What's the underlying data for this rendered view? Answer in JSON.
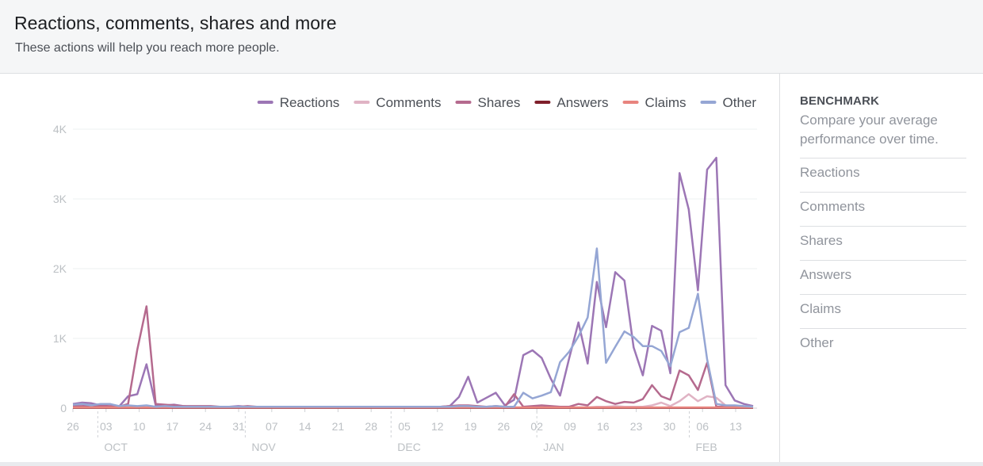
{
  "header": {
    "title": "Reactions, comments, shares and more",
    "subtitle": "These actions will help you reach more people."
  },
  "benchmark": {
    "title": "BENCHMARK",
    "description": "Compare your average performance over time.",
    "items": [
      "Reactions",
      "Comments",
      "Shares",
      "Answers",
      "Claims",
      "Other"
    ]
  },
  "chart_data": {
    "type": "line",
    "y_ticks": [
      "0",
      "1K",
      "2K",
      "3K",
      "4K"
    ],
    "ylim": [
      0,
      4000
    ],
    "x_ticks": [
      "26",
      "03",
      "10",
      "17",
      "24",
      "31",
      "07",
      "14",
      "21",
      "28",
      "05",
      "12",
      "19",
      "26",
      "02",
      "09",
      "16",
      "23",
      "30",
      "06",
      "13"
    ],
    "months": [
      "OCT",
      "NOV",
      "DEC",
      "JAN",
      "FEB"
    ],
    "grid": true,
    "legend_position": "top-right",
    "series": [
      {
        "name": "Reactions",
        "color": "#9c76b5",
        "values": [
          60,
          80,
          70,
          40,
          60,
          20,
          170,
          200,
          630,
          40,
          40,
          50,
          30,
          20,
          20,
          20,
          20,
          20,
          30,
          20,
          20,
          20,
          10,
          20,
          10,
          10,
          10,
          20,
          10,
          10,
          20,
          20,
          20,
          20,
          20,
          20,
          20,
          10,
          10,
          10,
          20,
          30,
          160,
          450,
          80,
          150,
          220,
          40,
          120,
          760,
          830,
          720,
          420,
          180,
          720,
          1230,
          640,
          1810,
          1160,
          1950,
          1830,
          870,
          470,
          1180,
          1110,
          500,
          3370,
          2850,
          1690,
          3420,
          3590,
          330,
          110,
          60,
          30
        ]
      },
      {
        "name": "Comments",
        "color": "#e0b3c4",
        "values": [
          10,
          10,
          10,
          10,
          10,
          10,
          10,
          10,
          10,
          10,
          10,
          10,
          10,
          10,
          10,
          10,
          10,
          10,
          10,
          10,
          10,
          10,
          10,
          10,
          10,
          10,
          10,
          10,
          10,
          10,
          10,
          10,
          10,
          10,
          10,
          10,
          10,
          10,
          10,
          10,
          10,
          10,
          10,
          10,
          10,
          10,
          10,
          10,
          10,
          10,
          10,
          10,
          10,
          10,
          10,
          10,
          10,
          20,
          20,
          30,
          20,
          20,
          20,
          40,
          80,
          30,
          100,
          200,
          100,
          170,
          150,
          40,
          20,
          10,
          10
        ]
      },
      {
        "name": "Shares",
        "color": "#b56a8e",
        "values": [
          30,
          30,
          40,
          30,
          30,
          20,
          60,
          840,
          1460,
          60,
          50,
          40,
          30,
          30,
          30,
          30,
          20,
          20,
          20,
          30,
          20,
          20,
          20,
          20,
          20,
          20,
          20,
          20,
          20,
          20,
          20,
          20,
          20,
          20,
          20,
          20,
          20,
          20,
          20,
          20,
          20,
          30,
          40,
          40,
          30,
          20,
          30,
          20,
          200,
          20,
          30,
          40,
          30,
          20,
          20,
          60,
          40,
          160,
          100,
          60,
          90,
          80,
          130,
          330,
          170,
          120,
          540,
          470,
          260,
          650,
          20,
          20,
          20,
          20,
          10
        ]
      },
      {
        "name": "Answers",
        "color": "#7f1f2b",
        "values": [
          5,
          5,
          5,
          5,
          5,
          5,
          5,
          5,
          5,
          5,
          5,
          5,
          5,
          5,
          5,
          5,
          5,
          5,
          5,
          5,
          5,
          5,
          5,
          5,
          5,
          5,
          5,
          5,
          5,
          5,
          5,
          5,
          5,
          5,
          5,
          5,
          5,
          5,
          5,
          5,
          5,
          5,
          5,
          5,
          5,
          5,
          5,
          5,
          5,
          5,
          5,
          5,
          5,
          5,
          5,
          5,
          5,
          5,
          5,
          5,
          5,
          5,
          5,
          5,
          5,
          5,
          5,
          5,
          5,
          5,
          5,
          5,
          5,
          5,
          5
        ]
      },
      {
        "name": "Claims",
        "color": "#e8847e",
        "values": [
          10,
          10,
          10,
          10,
          10,
          10,
          10,
          10,
          10,
          10,
          10,
          10,
          10,
          10,
          10,
          10,
          10,
          10,
          10,
          10,
          10,
          10,
          10,
          10,
          10,
          10,
          10,
          10,
          10,
          10,
          10,
          10,
          10,
          10,
          10,
          10,
          10,
          10,
          10,
          10,
          10,
          10,
          10,
          10,
          10,
          10,
          10,
          10,
          10,
          10,
          10,
          10,
          10,
          10,
          10,
          10,
          10,
          10,
          10,
          10,
          10,
          10,
          10,
          10,
          10,
          10,
          10,
          10,
          10,
          10,
          10,
          10,
          10,
          10,
          10
        ]
      },
      {
        "name": "Other",
        "color": "#95a6d4",
        "values": [
          50,
          60,
          40,
          60,
          60,
          30,
          40,
          30,
          40,
          20,
          30,
          20,
          20,
          20,
          20,
          20,
          20,
          20,
          20,
          20,
          20,
          20,
          20,
          20,
          20,
          20,
          20,
          20,
          20,
          20,
          20,
          20,
          20,
          20,
          20,
          20,
          20,
          20,
          20,
          20,
          20,
          20,
          30,
          30,
          20,
          20,
          30,
          20,
          20,
          220,
          140,
          180,
          230,
          660,
          810,
          1030,
          1300,
          2290,
          650,
          880,
          1100,
          1020,
          890,
          890,
          820,
          600,
          1090,
          1150,
          1640,
          700,
          60,
          40,
          40,
          30,
          20
        ]
      }
    ]
  }
}
